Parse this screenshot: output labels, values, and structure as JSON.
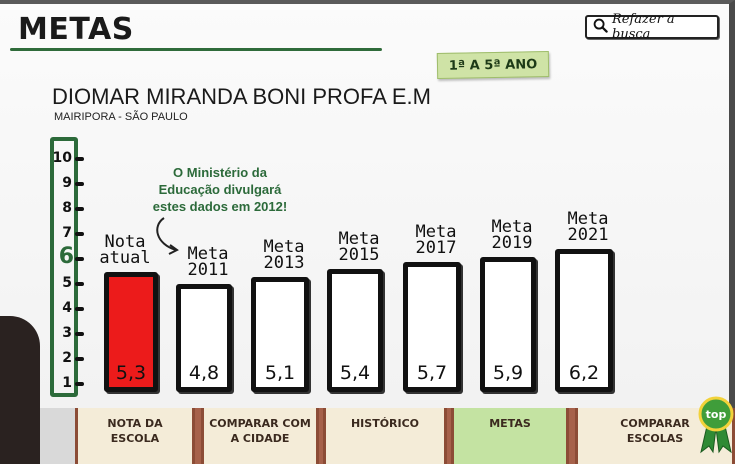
{
  "header": {
    "title": "METAS",
    "search_label": "Refazer a busca",
    "grade_tag": "1ª A 5ª ANO"
  },
  "school": {
    "name": "DIOMAR MIRANDA BONI PROFA E.M",
    "location": "MAIRIPORA - SÃO PAULO"
  },
  "note": "O Ministério da Educação divulgará estes dados em 2012!",
  "chart_data": {
    "type": "bar",
    "categories": [
      "Nota atual",
      "Meta 2011",
      "Meta 2013",
      "Meta 2015",
      "Meta 2017",
      "Meta 2019",
      "Meta 2021"
    ],
    "values": [
      5.3,
      4.8,
      5.1,
      5.4,
      5.7,
      5.9,
      6.2
    ],
    "value_labels": [
      "5,3",
      "4,8",
      "5,1",
      "5,4",
      "5,7",
      "5,9",
      "6,2"
    ],
    "cap_lines": [
      [
        "Nota",
        "atual"
      ],
      [
        "Meta",
        "2011"
      ],
      [
        "Meta",
        "2013"
      ],
      [
        "Meta",
        "2015"
      ],
      [
        "Meta",
        "2017"
      ],
      [
        "Meta",
        "2019"
      ],
      [
        "Meta",
        "2021"
      ]
    ],
    "highlight_index": 0,
    "highlight_color": "#ec1b1b",
    "y_ticks": [
      "1",
      "2",
      "3",
      "4",
      "5",
      "6",
      "7",
      "8",
      "9",
      "10"
    ],
    "ylim": [
      0.5,
      10
    ],
    "highlighted_tick": "6",
    "ruler_color": "#2c6a3a"
  },
  "nav": {
    "items": [
      {
        "label": "NOTA DA\nESCOLA",
        "active": false
      },
      {
        "label": "COMPARAR COM\nA CIDADE",
        "active": false
      },
      {
        "label": "HISTÓRICO",
        "active": false
      },
      {
        "label": "METAS",
        "active": true
      },
      {
        "label": "COMPARAR\nESCOLAS",
        "active": false
      }
    ],
    "active_color": "#c4e3a2"
  },
  "top_badge": "top",
  "icons": {
    "search": "search-icon",
    "arrow": "curved-arrow-icon",
    "top": "top-ribbon-icon"
  }
}
